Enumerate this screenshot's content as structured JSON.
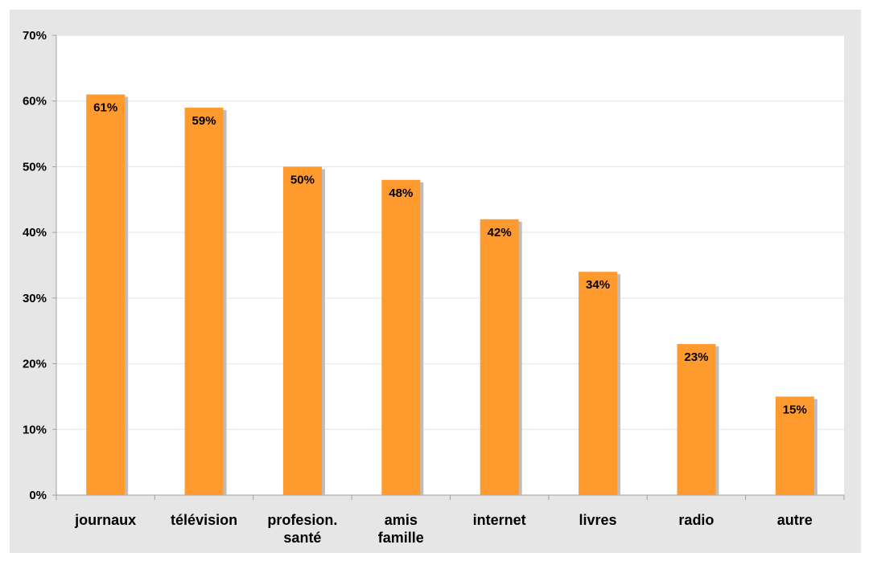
{
  "chart_data": {
    "type": "bar",
    "categories": [
      [
        "journaux"
      ],
      [
        "télévision"
      ],
      [
        "profesion.",
        "santé"
      ],
      [
        "amis",
        "famille"
      ],
      [
        "internet"
      ],
      [
        "livres"
      ],
      [
        "radio"
      ],
      [
        "autre"
      ]
    ],
    "values": [
      61,
      59,
      50,
      48,
      42,
      34,
      23,
      15
    ],
    "data_labels": [
      "61%",
      "59%",
      "50%",
      "48%",
      "42%",
      "34%",
      "23%",
      "15%"
    ],
    "title": "",
    "xlabel": "",
    "ylabel": "",
    "ylim": [
      0,
      70
    ],
    "yticks": [
      0,
      10,
      20,
      30,
      40,
      50,
      60,
      70
    ],
    "ytick_labels": [
      "0%",
      "10%",
      "20%",
      "30%",
      "40%",
      "50%",
      "60%",
      "70%"
    ],
    "grid": true,
    "legend": "none",
    "colors": {
      "bar": "#ff9a2e",
      "bar_shadow": "#bdbdbd",
      "plot_background": "#ffffff",
      "frame_background": "#e6e6e6",
      "gridline": "#e4e4e4",
      "axis": "#a0a0a0"
    }
  }
}
